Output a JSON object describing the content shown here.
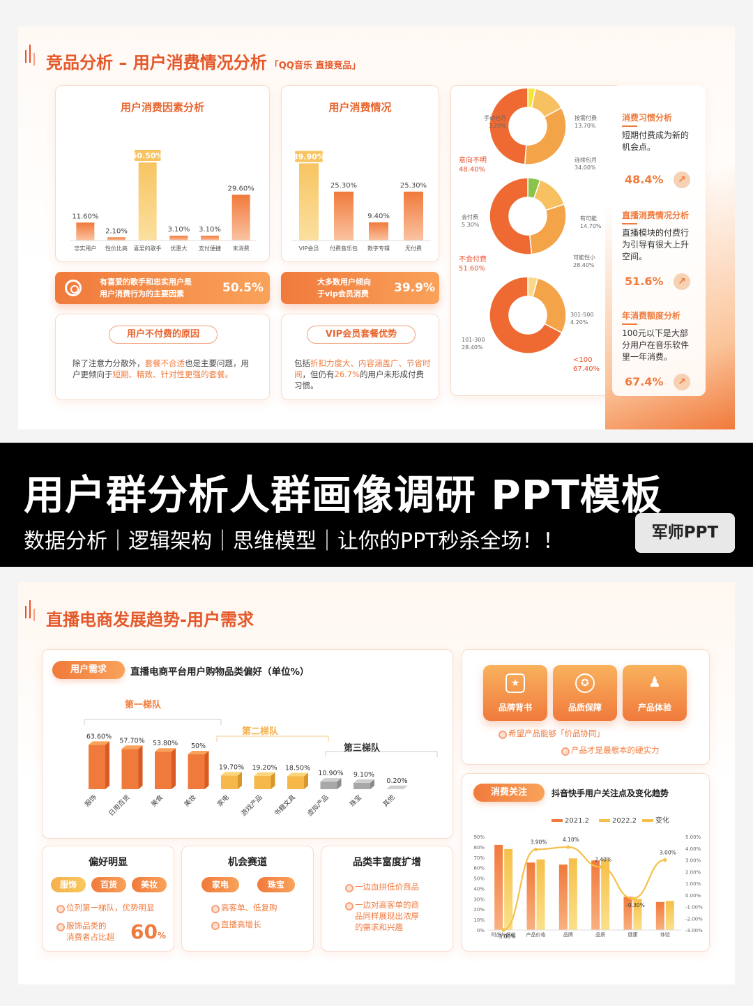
{
  "slide1": {
    "title": "竞品分析 – 用户消费情况分析",
    "title_tag": "「QQ音乐 直接竞品」",
    "card_factor": {
      "title": "用户消费因素分析"
    },
    "card_consume": {
      "title": "用户消费情况"
    },
    "pill1": {
      "text": "有喜爱的歌手和忠实用户是用户消费行为的主要因素",
      "line1": "有喜爱的歌手和忠实用户是",
      "line2": "用户消费行为的主要因素",
      "value": "50.5%"
    },
    "pill2": {
      "line1": "大多数用户倾向",
      "line2": "于vip会员消费",
      "value": "39.9%"
    },
    "nopay": {
      "tag": "用户不付费的原因",
      "t1": "除了注意力分散外，",
      "t2": "套餐不合适",
      "t3": "也是主要问题，用户更倾向于",
      "t4": "短期、精致、针对性更强的套餐。"
    },
    "vip": {
      "tag": "VIP会员套餐优势",
      "t1": "包括",
      "t2": "折扣力度大、内容涵盖广、节省时间",
      "t3": "，但仍有",
      "t4": "26.7%",
      "t5": "的用户未形成付费习惯。"
    },
    "insights": [
      {
        "title": "消费习惯分析",
        "body": "短期付费成为新的机会点。",
        "pct": "48.4%"
      },
      {
        "title": "直播消费情况分析",
        "body": "直播模块的付费行为引导有很大上升空间。",
        "pct": "51.6%"
      },
      {
        "title": "年消费额度分析",
        "body": "100元以下是大部分用户在音乐软件里一年消费。",
        "pct": "67.4%"
      }
    ],
    "donut_labels": {
      "d1": {
        "a": "手动包月",
        "av": "3.20%",
        "b": "按需付费",
        "bv": "13.70%",
        "c": "连续包月",
        "cv": "34.00%",
        "d": "意向不明",
        "dv": "48.40%"
      },
      "d2": {
        "a": "会付费",
        "av": "5.30%",
        "b": "有可能",
        "bv": "14.70%",
        "c": "可能性小",
        "cv": "28.40%",
        "d": "不会付费",
        "dv": "51.60%"
      },
      "d3": {
        "a": "301-500",
        "av": "4.20%",
        "b": "101-300",
        "bv": "28.40%",
        "c": "<100",
        "cv": "67.40%"
      }
    }
  },
  "banner": {
    "title": "用户群分析人群画像调研   PPT模板",
    "subtitle": "数据分析｜逻辑架构｜思维模型｜让你的PPT秒杀全场！！",
    "badge": "军师PPT"
  },
  "slide2": {
    "title": "直播电商发展趋势-用户需求",
    "need_pill": "用户需求",
    "need_heading": "直播电商平台用户购物品类偏好（单位%）",
    "tier1": "第一梯队",
    "tier2": "第二梯队",
    "tier3": "第三梯队",
    "tiles": [
      "品牌背书",
      "品质保障",
      "产品体验"
    ],
    "tile_b1": "希望产品能够「价品协同」",
    "tile_b2": "产品才是最根本的硬实力",
    "focus_pill": "消费关注",
    "focus_heading": "抖音快手用户关注点及变化趋势",
    "cards": {
      "pref": {
        "title": "偏好明显",
        "pills": [
          "服饰",
          "百货",
          "美妆"
        ],
        "b1": "位列第一梯队，优势明显",
        "b2a": "服饰品类的",
        "b2b": "消费者占比超",
        "big": "60",
        "big_unit": "%"
      },
      "chance": {
        "title": "机会赛道",
        "pills": [
          "家电",
          "珠宝"
        ],
        "b1": "高客单、低复购",
        "b2": "直播高增长"
      },
      "expand": {
        "title": "品类丰富度扩增",
        "b1": "一边血拼低价商品",
        "b2a": "一边对高客单的商",
        "b2b": "品同样展现出浓厚",
        "b2c": "的需求和兴趣"
      }
    }
  },
  "chart_data": [
    {
      "type": "bar",
      "title": "用户消费因素分析",
      "categories": [
        "忠实用户",
        "性价比高",
        "喜爱的歌手",
        "优惠大",
        "支付便捷",
        "未消费"
      ],
      "values": [
        11.6,
        2.1,
        50.5,
        3.1,
        3.1,
        29.6
      ],
      "labels": [
        "11.60%",
        "2.10%",
        "50.50%",
        "3.10%",
        "3.10%",
        "29.60%"
      ],
      "highlight_index": 2
    },
    {
      "type": "bar",
      "title": "用户消费情况",
      "categories": [
        "VIP会员",
        "付费音乐包",
        "数字专辑",
        "无付费"
      ],
      "values": [
        39.9,
        25.3,
        9.4,
        25.3
      ],
      "labels": [
        "39.90%",
        "25.30%",
        "9.40%",
        "25.30%"
      ],
      "highlight_index": 0
    },
    {
      "type": "pie",
      "donut": true,
      "categories": [
        "手动包月",
        "按需付费",
        "连续包月",
        "意向不明"
      ],
      "values": [
        3.2,
        13.7,
        34.0,
        48.4
      ],
      "colors": [
        "#f7e43a",
        "#f7c060",
        "#f3a348",
        "#ee6a32"
      ]
    },
    {
      "type": "pie",
      "donut": true,
      "categories": [
        "会付费",
        "有可能",
        "可能性小",
        "不会付费"
      ],
      "values": [
        5.3,
        14.7,
        28.4,
        51.6
      ],
      "colors": [
        "#8bc34a",
        "#f7c060",
        "#f3a348",
        "#ee6a32"
      ]
    },
    {
      "type": "pie",
      "donut": true,
      "categories": [
        "301-500",
        "101-300",
        "<100"
      ],
      "values": [
        4.2,
        28.4,
        67.4
      ],
      "colors": [
        "#f9d88a",
        "#f3a348",
        "#ee6a32"
      ]
    },
    {
      "type": "bar",
      "title": "直播电商平台用户购物品类偏好（单位%）",
      "categories": [
        "服饰",
        "日用百货",
        "美食",
        "美妆",
        "家电",
        "游戏产品",
        "书籍文具",
        "虚拟产品",
        "珠宝",
        "其他"
      ],
      "values": [
        63.6,
        57.7,
        53.8,
        50,
        19.7,
        19.2,
        18.5,
        10.9,
        9.1,
        0.2
      ],
      "labels": [
        "63.60%",
        "57.70%",
        "53.80%",
        "50%",
        "19.70%",
        "19.20%",
        "18.50%",
        "10.90%",
        "9.10%",
        "0.20%"
      ],
      "tiers": [
        1,
        1,
        1,
        1,
        2,
        2,
        2,
        3,
        3,
        3
      ]
    },
    {
      "type": "bar",
      "title": "抖音快手用户关注点及变化趋势",
      "categories": [
        "时尚与颜值",
        "产品价格",
        "品牌",
        "品质",
        "健康",
        "体验"
      ],
      "series": [
        {
          "name": "2021.2",
          "values": [
            82,
            65,
            63,
            67,
            32,
            27
          ]
        },
        {
          "name": "2022.2",
          "values": [
            78,
            68,
            69,
            68,
            30,
            28
          ]
        },
        {
          "name": "变化",
          "type": "line",
          "values": [
            -3.0,
            3.9,
            4.1,
            2.4,
            -0.3,
            3.0
          ],
          "labels": [
            "-3.00%",
            "3.90%",
            "4.10%",
            "2.40%",
            "-0.30%",
            "3.00%"
          ]
        }
      ],
      "y_left": {
        "ticks": [
          "0%",
          "10%",
          "20%",
          "30%",
          "40%",
          "50%",
          "60%",
          "70%",
          "80%",
          "90%"
        ],
        "ylim": [
          0,
          90
        ]
      },
      "y_right": {
        "ticks": [
          "-3.00%",
          "-2.00%",
          "-1.00%",
          "0.00%",
          "1.00%",
          "2.00%",
          "3.00%",
          "4.00%",
          "5.00%"
        ],
        "ylim": [
          -3,
          5
        ]
      },
      "legend": "top"
    }
  ]
}
